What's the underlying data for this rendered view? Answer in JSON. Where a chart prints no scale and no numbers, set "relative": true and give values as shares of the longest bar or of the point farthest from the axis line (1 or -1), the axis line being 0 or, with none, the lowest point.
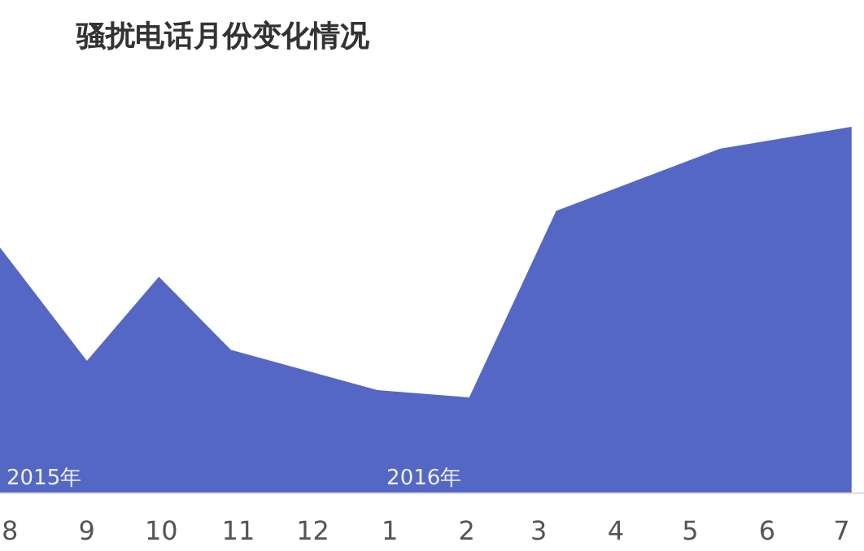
{
  "chart_data": {
    "type": "area",
    "title": "骚扰电话月份变化情况",
    "relative": true,
    "color": "#5567c4",
    "x": [
      "2015-07-28",
      "2015-09-01",
      "2015-09-30",
      "2015-10-29",
      "2015-12-27",
      "2016-02-02",
      "2016-03-08",
      "2016-05-13",
      "2016-07-05"
    ],
    "values": [
      0.67,
      0.36,
      0.59,
      0.39,
      0.28,
      0.26,
      0.77,
      0.94,
      1
    ],
    "xlim": [
      "2015-07-28",
      "2016-07-10"
    ],
    "xticks": [
      {
        "value": "2015-08",
        "label": "8"
      },
      {
        "value": "2015-09",
        "label": "9"
      },
      {
        "value": "2015-10",
        "label": "10"
      },
      {
        "value": "2015-11",
        "label": "11"
      },
      {
        "value": "2015-12",
        "label": "12"
      },
      {
        "value": "2016-01",
        "label": "1"
      },
      {
        "value": "2016-02",
        "label": "2"
      },
      {
        "value": "2016-03",
        "label": "3"
      },
      {
        "value": "2016-04",
        "label": "4"
      },
      {
        "value": "2016-05",
        "label": "5"
      },
      {
        "value": "2016-06",
        "label": "6"
      },
      {
        "value": "2016-07",
        "label": "7"
      }
    ],
    "annotations": [
      "2015年",
      "2016年"
    ]
  }
}
